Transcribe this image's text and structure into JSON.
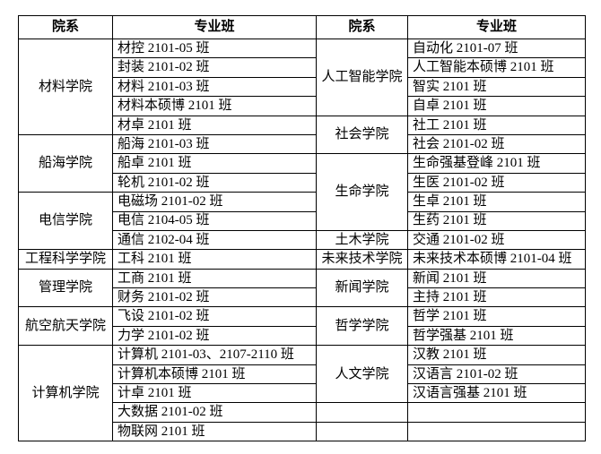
{
  "page": {
    "background_color": "#ffffff",
    "border_color": "#000000",
    "text_color": "#000000"
  },
  "table": {
    "header": {
      "department": "院系",
      "class_label": "专业班"
    },
    "left": {
      "groups": [
        {
          "department": "材料学院",
          "classes": [
            "材控 2101-05 班",
            "封装 2101-02 班",
            "材料 2101-03 班",
            "材料本硕博 2101 班",
            "材卓 2101 班"
          ]
        },
        {
          "department": "船海学院",
          "classes": [
            "船海 2101-03 班",
            "船卓 2101 班",
            "轮机 2101-02 班"
          ]
        },
        {
          "department": "电信学院",
          "classes": [
            "电磁场 2101-02 班",
            "电信 2104-05 班",
            "通信 2102-04 班"
          ]
        },
        {
          "department": "工程科学学院",
          "classes": [
            "工科 2101 班"
          ]
        },
        {
          "department": "管理学院",
          "classes": [
            "工商 2101 班",
            "财务 2101-02 班"
          ]
        },
        {
          "department": "航空航天学院",
          "classes": [
            "飞设 2101-02 班",
            "力学 2101-02 班"
          ]
        },
        {
          "department": "计算机学院",
          "classes": [
            "计算机 2101-03、2107-2110 班",
            "计算机本硕博 2101 班",
            "计卓 2101 班",
            "大数据 2101-02 班",
            "物联网 2101 班"
          ]
        }
      ]
    },
    "right": {
      "groups": [
        {
          "department": "人工智能学院",
          "classes": [
            "自动化 2101-07 班",
            "人工智能本硕博 2101 班",
            "智实 2101 班",
            "自卓 2101 班"
          ]
        },
        {
          "department": "社会学院",
          "classes": [
            "社工 2101 班",
            "社会 2101-02 班"
          ]
        },
        {
          "department": "生命学院",
          "classes": [
            "生命强基登峰 2101 班",
            "生医 2101-02 班",
            "生卓 2101 班",
            "生药 2101 班"
          ]
        },
        {
          "department": "土木学院",
          "classes": [
            "交通 2101-02 班"
          ]
        },
        {
          "department": "未来技术学院",
          "classes": [
            "未来技术本硕博 2101-04 班"
          ]
        },
        {
          "department": "新闻学院",
          "classes": [
            "新闻 2101 班",
            "主持 2101 班"
          ]
        },
        {
          "department": "哲学学院",
          "classes": [
            "哲学 2101 班",
            "哲学强基 2101 班"
          ]
        },
        {
          "department": "人文学院",
          "classes": [
            "汉教 2101 班",
            "汉语言 2101-02 班",
            "汉语言强基 2101 班"
          ]
        },
        {
          "department": "",
          "classes": [
            ""
          ]
        },
        {
          "department": "",
          "classes": [
            ""
          ]
        }
      ]
    }
  }
}
